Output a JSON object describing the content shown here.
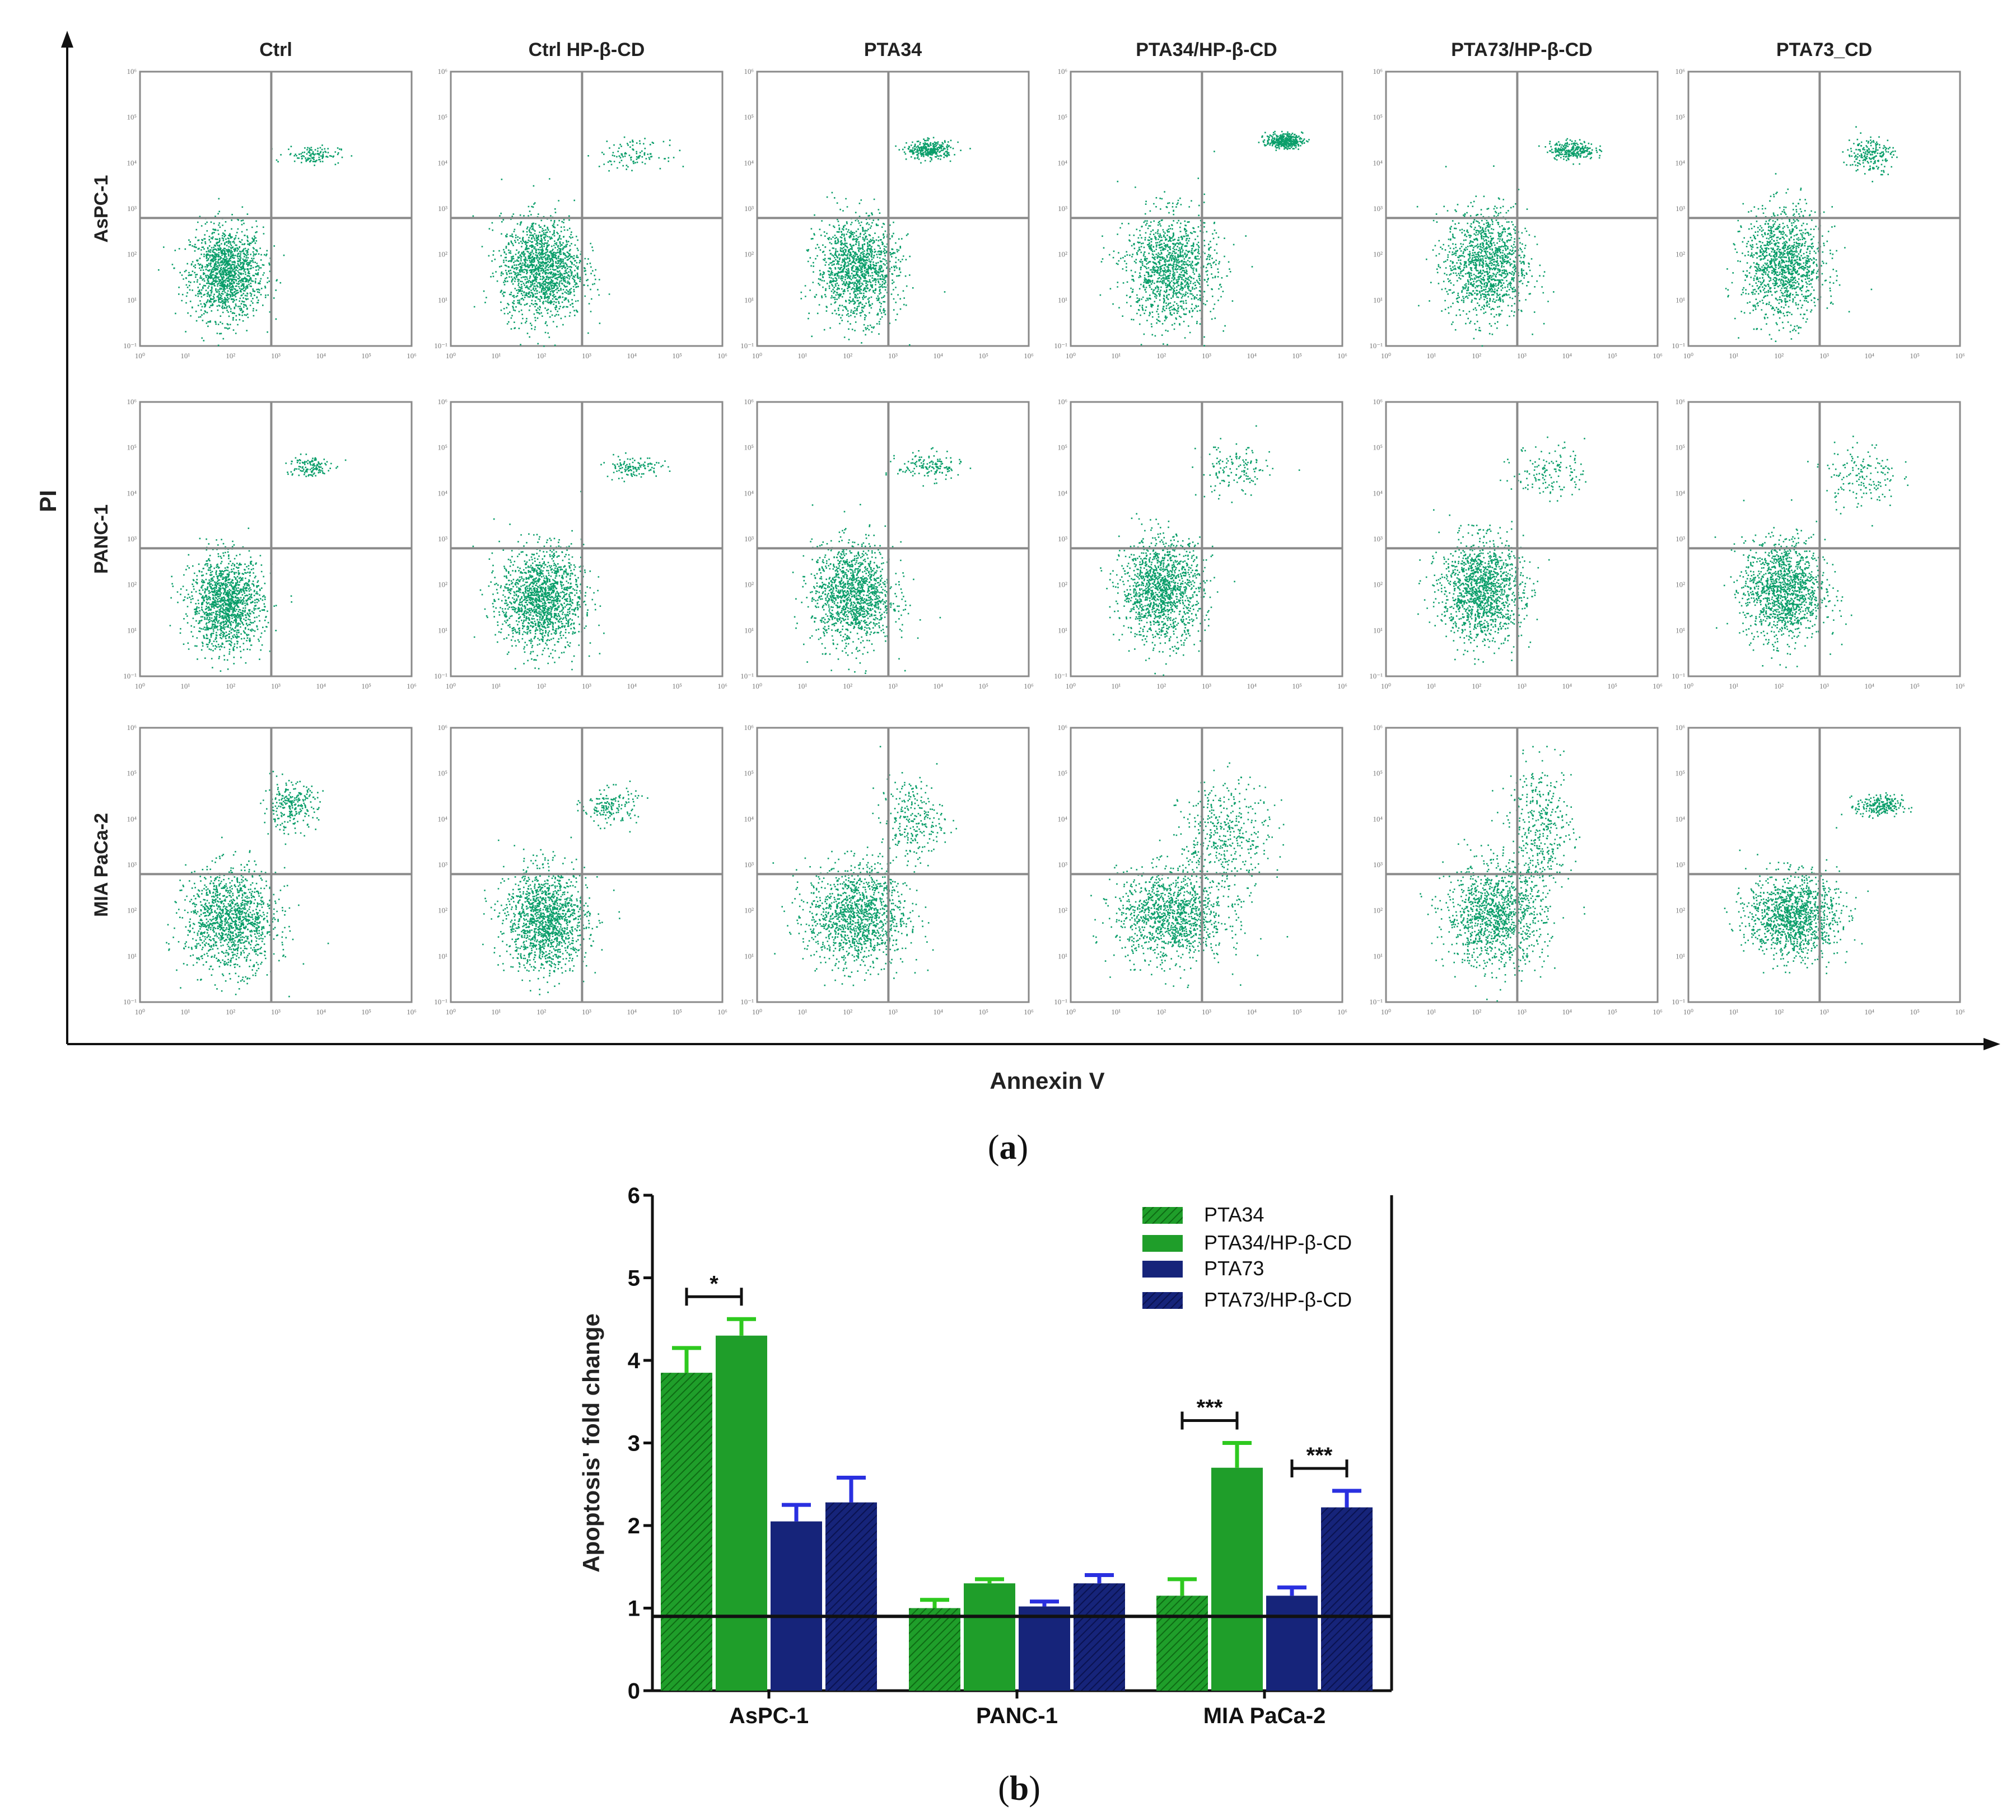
{
  "chart_data": [
    {
      "type": "scatter",
      "panel_label": "a",
      "x_axis_label": "Annexin V",
      "y_axis_label": "PI",
      "columns": [
        "Ctrl",
        "Ctrl HP-β-CD",
        "PTA34",
        "PTA34/HP-β-CD",
        "PTA73/HP-β-CD",
        "PTA73_CD"
      ],
      "rows": [
        "AsPC-1",
        "PANC-1",
        "MIA PaCa-2"
      ],
      "x_ticks": [
        "10⁰",
        "10¹",
        "10²",
        "10³",
        "10⁴",
        "10⁵",
        "10⁶"
      ],
      "y_ticks": [
        "10⁻¹",
        "10¹",
        "10²",
        "10³",
        "10⁴",
        "10⁵",
        "10⁶"
      ],
      "x_range_log10": [
        0,
        6
      ],
      "y_range_log10": [
        0,
        6
      ],
      "gate_x_log10": 2.9,
      "gate_y_log10": 2.8,
      "populations": [
        [
          [
            {
              "cx": 1.9,
              "cy": 1.6,
              "sx": 0.4,
              "sy": 0.5,
              "n": 1400
            },
            {
              "cx": 3.8,
              "cy": 4.2,
              "sx": 0.3,
              "sy": 0.1,
              "n": 120
            }
          ],
          [
            {
              "cx": 2.0,
              "cy": 1.7,
              "sx": 0.45,
              "sy": 0.55,
              "n": 1500
            },
            {
              "cx": 4.0,
              "cy": 4.2,
              "sx": 0.35,
              "sy": 0.15,
              "n": 110
            }
          ],
          [
            {
              "cx": 2.2,
              "cy": 1.7,
              "sx": 0.45,
              "sy": 0.55,
              "n": 1300
            },
            {
              "cx": 3.8,
              "cy": 4.3,
              "sx": 0.25,
              "sy": 0.1,
              "n": 300
            }
          ],
          [
            {
              "cx": 2.2,
              "cy": 1.7,
              "sx": 0.5,
              "sy": 0.6,
              "n": 1250
            },
            {
              "cx": 4.7,
              "cy": 4.5,
              "sx": 0.2,
              "sy": 0.08,
              "n": 350
            }
          ],
          [
            {
              "cx": 2.2,
              "cy": 1.8,
              "sx": 0.45,
              "sy": 0.6,
              "n": 1250
            },
            {
              "cx": 4.1,
              "cy": 4.3,
              "sx": 0.25,
              "sy": 0.1,
              "n": 250
            }
          ],
          [
            {
              "cx": 2.1,
              "cy": 1.8,
              "sx": 0.45,
              "sy": 0.6,
              "n": 1250
            },
            {
              "cx": 4.0,
              "cy": 4.2,
              "sx": 0.25,
              "sy": 0.2,
              "n": 200
            }
          ]
        ],
        [
          [
            {
              "cx": 1.9,
              "cy": 1.6,
              "sx": 0.4,
              "sy": 0.5,
              "n": 1400
            },
            {
              "cx": 3.7,
              "cy": 4.6,
              "sx": 0.25,
              "sy": 0.12,
              "n": 130
            }
          ],
          [
            {
              "cx": 2.0,
              "cy": 1.7,
              "sx": 0.45,
              "sy": 0.55,
              "n": 1500
            },
            {
              "cx": 4.0,
              "cy": 4.6,
              "sx": 0.3,
              "sy": 0.12,
              "n": 120
            }
          ],
          [
            {
              "cx": 2.1,
              "cy": 1.8,
              "sx": 0.45,
              "sy": 0.55,
              "n": 1350
            },
            {
              "cx": 3.8,
              "cy": 4.6,
              "sx": 0.35,
              "sy": 0.15,
              "n": 140
            }
          ],
          [
            {
              "cx": 2.0,
              "cy": 1.9,
              "sx": 0.45,
              "sy": 0.55,
              "n": 1350
            },
            {
              "cx": 3.6,
              "cy": 4.5,
              "sx": 0.4,
              "sy": 0.3,
              "n": 140
            }
          ],
          [
            {
              "cx": 2.1,
              "cy": 1.9,
              "sx": 0.45,
              "sy": 0.55,
              "n": 1350
            },
            {
              "cx": 3.6,
              "cy": 4.5,
              "sx": 0.4,
              "sy": 0.3,
              "n": 140
            }
          ],
          [
            {
              "cx": 2.1,
              "cy": 1.9,
              "sx": 0.45,
              "sy": 0.55,
              "n": 1350
            },
            {
              "cx": 3.8,
              "cy": 4.4,
              "sx": 0.4,
              "sy": 0.35,
              "n": 160
            }
          ]
        ],
        [
          [
            {
              "cx": 2.0,
              "cy": 1.8,
              "sx": 0.5,
              "sy": 0.55,
              "n": 1300
            },
            {
              "cx": 3.3,
              "cy": 4.3,
              "sx": 0.3,
              "sy": 0.25,
              "n": 260
            }
          ],
          [
            {
              "cx": 2.1,
              "cy": 1.8,
              "sx": 0.45,
              "sy": 0.55,
              "n": 1400
            },
            {
              "cx": 3.5,
              "cy": 4.3,
              "sx": 0.3,
              "sy": 0.2,
              "n": 160
            }
          ],
          [
            {
              "cx": 2.2,
              "cy": 1.9,
              "sx": 0.55,
              "sy": 0.55,
              "n": 1300
            },
            {
              "cx": 3.4,
              "cy": 4.0,
              "sx": 0.35,
              "sy": 0.45,
              "n": 260
            }
          ],
          [
            {
              "cx": 2.2,
              "cy": 1.9,
              "sx": 0.6,
              "sy": 0.5,
              "n": 1200
            },
            {
              "cx": 3.4,
              "cy": 3.6,
              "sx": 0.5,
              "sy": 0.6,
              "n": 450
            }
          ],
          [
            {
              "cx": 2.4,
              "cy": 1.9,
              "sx": 0.55,
              "sy": 0.55,
              "n": 1200
            },
            {
              "cx": 3.4,
              "cy": 3.8,
              "sx": 0.35,
              "sy": 0.7,
              "n": 400
            }
          ],
          [
            {
              "cx": 2.3,
              "cy": 1.9,
              "sx": 0.5,
              "sy": 0.45,
              "n": 1250
            },
            {
              "cx": 4.2,
              "cy": 4.3,
              "sx": 0.25,
              "sy": 0.12,
              "n": 220
            }
          ]
        ]
      ]
    },
    {
      "type": "bar",
      "panel_label": "b",
      "ylabel": "Apoptosis' fold change",
      "xlabel": "",
      "categories": [
        "AsPC-1",
        "PANC-1",
        "MIA PaCa-2"
      ],
      "ylim": [
        0,
        6
      ],
      "yticks": [
        0,
        1,
        2,
        3,
        4,
        5,
        6
      ],
      "baseline": 0.9,
      "series": [
        {
          "name": "PTA34",
          "color": "#1f9e2a",
          "errColor": "#2ec91f",
          "hatch": true,
          "values": [
            3.85,
            1.0,
            1.15
          ],
          "errors": [
            0.3,
            0.1,
            0.2
          ]
        },
        {
          "name": "PTA34/HP-β-CD",
          "color": "#1f9e2a",
          "errColor": "#2ec91f",
          "hatch": false,
          "values": [
            4.3,
            1.3,
            2.7
          ],
          "errors": [
            0.2,
            0.05,
            0.3
          ]
        },
        {
          "name": "PTA73",
          "color": "#16247a",
          "errColor": "#2a30e0",
          "hatch": false,
          "values": [
            2.05,
            1.02,
            1.15
          ],
          "errors": [
            0.2,
            0.06,
            0.1
          ]
        },
        {
          "name": "PTA73/HP-β-CD",
          "color": "#16247a",
          "errColor": "#2a30e0",
          "hatch": true,
          "values": [
            2.28,
            1.3,
            2.22
          ],
          "errors": [
            0.3,
            0.1,
            0.2
          ]
        }
      ],
      "significance": [
        {
          "category": 0,
          "from": 0,
          "to": 1,
          "label": "*"
        },
        {
          "category": 2,
          "from": 0,
          "to": 1,
          "label": "***"
        },
        {
          "category": 2,
          "from": 2,
          "to": 3,
          "label": "***"
        }
      ]
    }
  ]
}
